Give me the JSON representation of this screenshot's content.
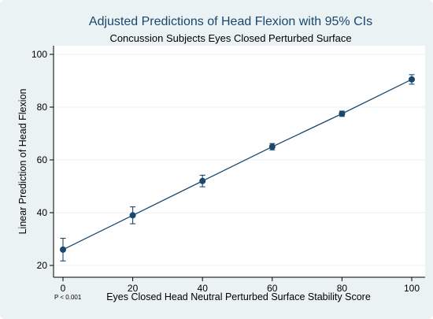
{
  "chart_data": {
    "type": "line",
    "title": "Adjusted Predictions of Head Flexion with 95% CIs",
    "subtitle": "Concussion Subjects Eyes Closed Perturbed Surface",
    "xlabel": "Eyes Closed Head Neutral Perturbed Surface Stability Score",
    "ylabel": "Linear Prediction of Head Flexion",
    "note": "P < 0.001",
    "xlim": [
      0,
      100
    ],
    "ylim": [
      20,
      100
    ],
    "xticks": [
      0,
      20,
      40,
      60,
      80,
      100
    ],
    "yticks": [
      20,
      40,
      60,
      80,
      100
    ],
    "grid": "horizontal",
    "series": [
      {
        "x": [
          0,
          20,
          40,
          60,
          80,
          100
        ],
        "y": [
          26,
          39,
          52,
          65,
          77.5,
          90.5
        ],
        "ci_low": [
          21.7,
          35.8,
          49.8,
          63.8,
          76.5,
          88.7
        ],
        "ci_high": [
          30.3,
          42.2,
          54.2,
          66.2,
          78.5,
          92.3
        ]
      }
    ],
    "colors": {
      "line": "#1a476f",
      "title": "#1a476f",
      "plot_background": "#ffffff",
      "frame_background": "#eaf2f3",
      "grid": "#eaf2f3"
    }
  }
}
